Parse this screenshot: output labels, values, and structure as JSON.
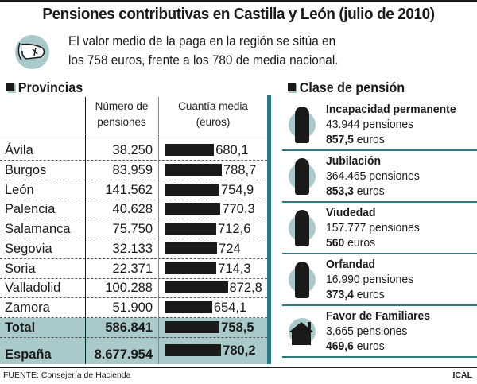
{
  "title": "Pensiones contributivas en Castilla y León (julio de 2010)",
  "intro": {
    "line1": "El valor medio de la paga en la región se sitúa en",
    "line2": "los 758 euros, frente a los 780 de media nacional."
  },
  "provincias": {
    "heading": "Provincias",
    "col1a": "Número de",
    "col1b": "pensiones",
    "col2a": "Cuantía media",
    "col2b": "(euros)"
  },
  "chart_data": {
    "type": "bar",
    "title": "Provincias",
    "ylabel": "Cuantía media (euros)",
    "categories": [
      "Ávila",
      "Burgos",
      "León",
      "Palencia",
      "Salamanca",
      "Segovia",
      "Soria",
      "Valladolid",
      "Zamora",
      "Total",
      "España"
    ],
    "pensiones": [
      "38.250",
      "83.959",
      "141.562",
      "40.628",
      "75.750",
      "32.133",
      "22.371",
      "100.288",
      "51.900",
      "586.841",
      "8.677.954"
    ],
    "value_labels": [
      "680,1",
      "788,7",
      "754,9",
      "770,3",
      "712,6",
      "724",
      "714,3",
      "872,8",
      "654,1",
      "758,5",
      "780,2"
    ],
    "values": [
      680.1,
      788.7,
      754.9,
      770.3,
      712.6,
      724,
      714.3,
      872.8,
      654.1,
      758.5,
      780.2
    ]
  },
  "clase": {
    "heading": "Clase de pensión",
    "items": [
      {
        "name": "Incapacidad permanente",
        "count": "43.944 pensiones",
        "amount": "857,5",
        "unit": "euros",
        "icon": "wheelchair-person-icon"
      },
      {
        "name": "Jubilación",
        "count": "364.465 pensiones",
        "amount": "853,3",
        "unit": "euros",
        "icon": "elderly-person-icon"
      },
      {
        "name": "Viudedad",
        "count": "157.777 pensiones",
        "amount": "560",
        "unit": "euros",
        "icon": "widow-icon"
      },
      {
        "name": "Orfandad",
        "count": "16.990 pensiones",
        "amount": "373,4",
        "unit": "euros",
        "icon": "child-icon"
      },
      {
        "name": "Favor de Familiares",
        "count": "3.665 pensiones",
        "amount": "469,6",
        "unit": "euros",
        "icon": "house-icon"
      }
    ]
  },
  "footer": {
    "source": "FUENTE: Consejería de Hacienda",
    "agency": "ICAL"
  },
  "colors": {
    "teal": "#2f7a80",
    "light_teal": "#a9c9cb",
    "dark": "#1a1a1a"
  }
}
